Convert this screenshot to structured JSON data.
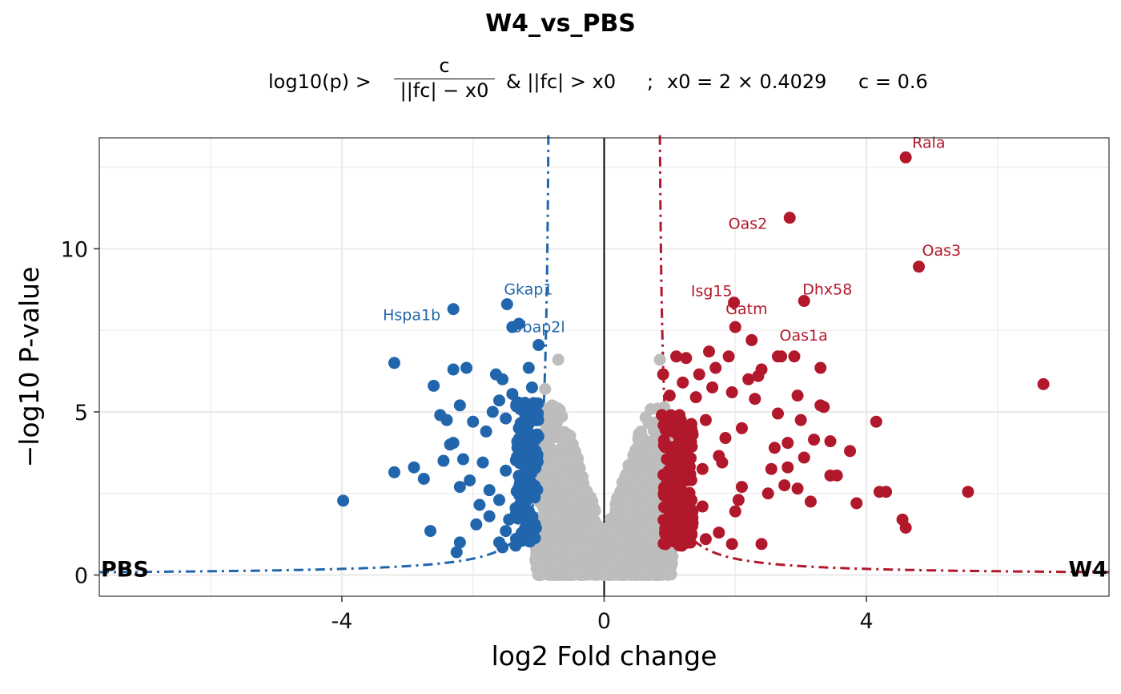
{
  "chart_data": {
    "type": "scatter",
    "title": "W4_vs_PBS",
    "subtitle": {
      "lhs": "log10(p) >",
      "numerator": "c",
      "denominator": "||fc| − x0",
      "and_clause": "& ||fc| > x0",
      "sep": ";",
      "x0_expr": "x0 = 2 × 0.4029",
      "c_expr": "c = 0.6"
    },
    "xlabel": "log2  Fold change",
    "ylabel": "−log10  P-value",
    "xlim": [
      -7.7,
      7.7
    ],
    "ylim": [
      -0.65,
      13.4
    ],
    "xticks": [
      -4,
      0,
      4
    ],
    "yticks": [
      0,
      5,
      10
    ],
    "x0": 0.8058,
    "c": 0.6,
    "grid": true,
    "corner_labels": {
      "left": "PBS",
      "right": "W4"
    },
    "colors": {
      "down": "#2166ac",
      "up": "#b2182b",
      "ns": "#bdbdbd",
      "grid": "#ebebeb",
      "axis": "#333333"
    },
    "labeled_genes": [
      {
        "gene": "Rala",
        "x": 4.6,
        "y": 12.8,
        "group": "up"
      },
      {
        "gene": "Oas2",
        "x": 2.83,
        "y": 10.95,
        "group": "up"
      },
      {
        "gene": "Oas3",
        "x": 4.8,
        "y": 9.45,
        "group": "up"
      },
      {
        "gene": "Isg15",
        "x": 1.98,
        "y": 8.35,
        "group": "up"
      },
      {
        "gene": "Dhx58",
        "x": 3.05,
        "y": 8.4,
        "group": "up"
      },
      {
        "gene": "Gatm",
        "x": 2.0,
        "y": 7.6,
        "group": "up"
      },
      {
        "gene": "Oas1a",
        "x": 2.65,
        "y": 6.7,
        "group": "up"
      },
      {
        "gene": "Gkap1",
        "x": -1.48,
        "y": 8.3,
        "group": "down"
      },
      {
        "gene": "Hspa1b",
        "x": -2.3,
        "y": 8.15,
        "group": "down"
      },
      {
        "gene": "Ubap2l",
        "x": -1.0,
        "y": 7.05,
        "group": "down"
      }
    ],
    "series": [
      {
        "name": "down",
        "points": [
          [
            -3.98,
            2.28
          ],
          [
            -3.2,
            6.5
          ],
          [
            -3.2,
            3.15
          ],
          [
            -2.9,
            3.3
          ],
          [
            -2.6,
            5.8
          ],
          [
            -2.5,
            4.9
          ],
          [
            -2.4,
            4.75
          ],
          [
            -2.45,
            3.5
          ],
          [
            -2.35,
            4.0
          ],
          [
            -2.2,
            5.2
          ],
          [
            -2.15,
            3.55
          ],
          [
            -2.2,
            2.7
          ],
          [
            -2.3,
            4.05
          ],
          [
            -2.3,
            6.3
          ],
          [
            -2.1,
            6.35
          ],
          [
            -2.0,
            4.7
          ],
          [
            -2.05,
            2.9
          ],
          [
            -1.9,
            2.15
          ],
          [
            -1.95,
            1.55
          ],
          [
            -1.85,
            3.45
          ],
          [
            -1.8,
            4.4
          ],
          [
            -1.75,
            2.6
          ],
          [
            -1.7,
            5.0
          ],
          [
            -1.75,
            1.8
          ],
          [
            -1.65,
            6.15
          ],
          [
            -1.6,
            5.35
          ],
          [
            -1.55,
            6.0
          ],
          [
            -1.5,
            4.8
          ],
          [
            -1.5,
            3.2
          ],
          [
            -1.5,
            1.35
          ],
          [
            -1.4,
            5.55
          ],
          [
            -1.4,
            7.6
          ],
          [
            -1.35,
            2.05
          ],
          [
            -1.3,
            7.7
          ],
          [
            -1.3,
            4.5
          ],
          [
            -1.25,
            1.05
          ],
          [
            -1.2,
            3.8
          ],
          [
            -1.2,
            5.1
          ],
          [
            -1.15,
            6.35
          ],
          [
            -1.12,
            2.85
          ],
          [
            -1.1,
            5.75
          ],
          [
            -1.05,
            4.15
          ],
          [
            -2.75,
            2.95
          ],
          [
            -2.65,
            1.35
          ],
          [
            -2.25,
            0.7
          ],
          [
            -2.2,
            1.0
          ],
          [
            -1.6,
            2.3
          ],
          [
            -1.45,
            1.7
          ],
          [
            -1.55,
            0.85
          ],
          [
            -1.35,
            0.9
          ],
          [
            -1.6,
            1.0
          ]
        ]
      },
      {
        "name": "up",
        "points": [
          [
            6.7,
            5.85
          ],
          [
            5.55,
            2.55
          ],
          [
            4.6,
            1.45
          ],
          [
            4.55,
            1.7
          ],
          [
            4.2,
            2.55
          ],
          [
            4.3,
            2.55
          ],
          [
            4.15,
            4.7
          ],
          [
            3.85,
            2.2
          ],
          [
            3.75,
            3.8
          ],
          [
            3.55,
            3.05
          ],
          [
            3.45,
            3.05
          ],
          [
            3.45,
            4.1
          ],
          [
            3.35,
            5.15
          ],
          [
            3.3,
            5.2
          ],
          [
            3.3,
            6.35
          ],
          [
            3.2,
            4.15
          ],
          [
            3.15,
            2.25
          ],
          [
            3.05,
            3.6
          ],
          [
            3.0,
            4.75
          ],
          [
            2.95,
            5.5
          ],
          [
            2.95,
            2.65
          ],
          [
            2.9,
            6.7
          ],
          [
            2.8,
            4.05
          ],
          [
            2.8,
            3.3
          ],
          [
            2.75,
            2.75
          ],
          [
            2.7,
            6.7
          ],
          [
            2.65,
            4.95
          ],
          [
            2.6,
            3.9
          ],
          [
            2.55,
            3.25
          ],
          [
            2.5,
            2.5
          ],
          [
            2.4,
            6.3
          ],
          [
            2.35,
            6.1
          ],
          [
            2.3,
            5.4
          ],
          [
            2.25,
            7.2
          ],
          [
            2.2,
            6.0
          ],
          [
            2.1,
            4.5
          ],
          [
            2.1,
            2.7
          ],
          [
            2.05,
            2.3
          ],
          [
            2.0,
            1.95
          ],
          [
            1.95,
            5.6
          ],
          [
            1.95,
            0.95
          ],
          [
            2.4,
            0.95
          ],
          [
            1.9,
            6.7
          ],
          [
            1.85,
            4.2
          ],
          [
            1.8,
            3.45
          ],
          [
            1.75,
            3.65
          ],
          [
            1.7,
            6.35
          ],
          [
            1.65,
            5.75
          ],
          [
            1.6,
            6.85
          ],
          [
            1.55,
            4.75
          ],
          [
            1.5,
            3.25
          ],
          [
            1.5,
            2.1
          ],
          [
            1.45,
            6.15
          ],
          [
            1.4,
            5.45
          ],
          [
            1.35,
            4.3
          ],
          [
            1.3,
            3.6
          ],
          [
            1.25,
            6.65
          ],
          [
            1.2,
            5.9
          ],
          [
            1.15,
            4.9
          ],
          [
            1.1,
            6.7
          ],
          [
            1.05,
            4.4
          ],
          [
            1.0,
            5.5
          ],
          [
            0.95,
            3.95
          ],
          [
            0.9,
            6.15
          ],
          [
            0.88,
            4.9
          ],
          [
            1.75,
            1.3
          ],
          [
            1.55,
            1.1
          ],
          [
            1.35,
            1.6
          ],
          [
            1.2,
            2.4
          ]
        ]
      }
    ]
  }
}
